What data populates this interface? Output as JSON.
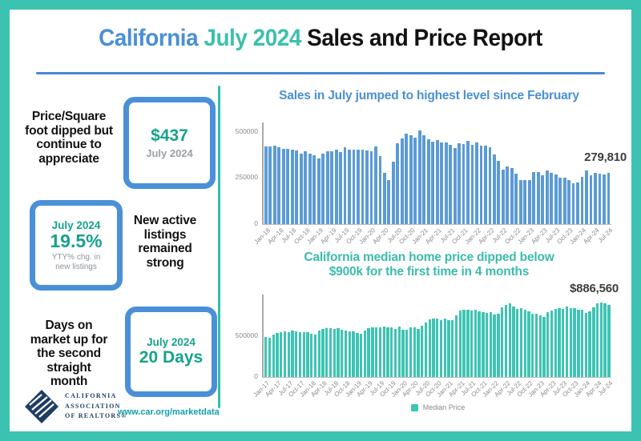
{
  "header": {
    "title_part1": "California",
    "title_part2": "July 2024",
    "title_part3": "Sales and Price Report"
  },
  "left_panel": {
    "stat1": {
      "description": "Price/Square foot dipped but continue to appreciate",
      "value": "$437",
      "period": "July 2024"
    },
    "stat2": {
      "period": "July 2024",
      "value": "19.5%",
      "caption": "YTY% chg. in new listings",
      "description": "New active listings remained strong"
    },
    "stat3": {
      "description": "Days on market up for the second straight month",
      "period": "July 2024",
      "value": "20 Days"
    }
  },
  "footer": {
    "logo_line1": "CALIFORNIA",
    "logo_line2": "ASSOCIATION",
    "logo_line3": "OF REALTORS®",
    "url": "www.car.org/marketdata"
  },
  "colors": {
    "frame_teal": "#3cc2b0",
    "divider_teal": "#2fbfae",
    "underline_blue": "#4a86d8",
    "title_blue": "#4a8fd6",
    "title_teal": "#3cc0ae",
    "text_dark": "#121212",
    "box_border": "#4a90d9",
    "stat_teal": "#16a28c",
    "box_gray": "#9aa0a5",
    "caption_gray": "#8d949b",
    "axis_gray": "#8a8a8a",
    "annotation_dark": "#3d3d3d",
    "logo_navy": "#1d3d63",
    "url_teal": "#12a0ab",
    "legend_gray": "#8a8a8a",
    "legend_swatch": "#3ec4b3"
  },
  "chart_data": [
    {
      "type": "bar",
      "title": "Sales in July jumped to highest level since February",
      "title_color": "#4a90d2",
      "bar_color": "#5b9bd5",
      "annotation": "279,810",
      "ylim": [
        0,
        530000
      ],
      "yticks": [
        0,
        250000,
        500000
      ],
      "tick_every": 3,
      "legend_position": "none",
      "grid": false,
      "categories": [
        "Jan-18",
        "Feb-18",
        "Mar-18",
        "Apr-18",
        "May-18",
        "Jun-18",
        "Jul-18",
        "Aug-18",
        "Sep-18",
        "Oct-18",
        "Nov-18",
        "Dec-18",
        "Jan-19",
        "Feb-19",
        "Mar-19",
        "Apr-19",
        "May-19",
        "Jun-19",
        "Jul-19",
        "Aug-19",
        "Sep-19",
        "Oct-19",
        "Nov-19",
        "Dec-19",
        "Jan-20",
        "Feb-20",
        "Mar-20",
        "Apr-20",
        "May-20",
        "Jun-20",
        "Jul-20",
        "Aug-20",
        "Sep-20",
        "Oct-20",
        "Nov-20",
        "Dec-20",
        "Jan-21",
        "Feb-21",
        "Mar-21",
        "Apr-21",
        "May-21",
        "Jun-21",
        "Jul-21",
        "Aug-21",
        "Sep-21",
        "Oct-21",
        "Nov-21",
        "Dec-21",
        "Jan-22",
        "Feb-22",
        "Mar-22",
        "Apr-22",
        "May-22",
        "Jun-22",
        "Jul-22",
        "Aug-22",
        "Sep-22",
        "Oct-22",
        "Nov-22",
        "Dec-22",
        "Jan-23",
        "Feb-23",
        "Mar-23",
        "Apr-23",
        "May-23",
        "Jun-23",
        "Jul-23",
        "Aug-23",
        "Sep-23",
        "Oct-23",
        "Nov-23",
        "Dec-23",
        "Jan-24",
        "Feb-24",
        "Mar-24",
        "Apr-24",
        "May-24",
        "Jun-24",
        "Jul-24"
      ],
      "values": [
        420000,
        423000,
        424000,
        416000,
        409000,
        410000,
        406000,
        399000,
        382000,
        397000,
        381000,
        372000,
        357000,
        383000,
        397000,
        396000,
        406000,
        389000,
        415000,
        406000,
        404000,
        404000,
        402000,
        398000,
        395000,
        421000,
        370000,
        277000,
        238000,
        339000,
        437000,
        465000,
        489000,
        484000,
        469000,
        509000,
        484000,
        462000,
        446000,
        458000,
        445000,
        444000,
        428000,
        414000,
        439000,
        434000,
        454000,
        430000,
        444000,
        425000,
        426000,
        419000,
        378000,
        344000,
        295000,
        313000,
        305000,
        274000,
        237000,
        241000,
        241000,
        284000,
        281000,
        267000,
        290000,
        277000,
        270000,
        254000,
        254000,
        241000,
        223000,
        224000,
        256000,
        290000,
        267000,
        276000,
        272000,
        270000,
        279810
      ]
    },
    {
      "type": "bar",
      "title": "California median home price dipped below $900k for the first time in 4 months",
      "title_lines": [
        "California median home price dipped below",
        "$900k for the first time in 4 months"
      ],
      "title_color": "#3bbcab",
      "bar_color": "#3ec4b3",
      "annotation": "$886,560",
      "legend": "Median Price",
      "legend_position": "bottom",
      "ylim": [
        0,
        960000
      ],
      "yticks": [
        0,
        500000
      ],
      "tick_every": 3,
      "grid": false,
      "categories": [
        "Jan-17",
        "Feb-17",
        "Mar-17",
        "Apr-17",
        "May-17",
        "Jun-17",
        "Jul-17",
        "Aug-17",
        "Sep-17",
        "Oct-17",
        "Nov-17",
        "Dec-17",
        "Jan-18",
        "Feb-18",
        "Mar-18",
        "Apr-18",
        "May-18",
        "Jun-18",
        "Jul-18",
        "Aug-18",
        "Sep-18",
        "Oct-18",
        "Nov-18",
        "Dec-18",
        "Jan-19",
        "Feb-19",
        "Mar-19",
        "Apr-19",
        "May-19",
        "Jun-19",
        "Jul-19",
        "Aug-19",
        "Sep-19",
        "Oct-19",
        "Nov-19",
        "Dec-19",
        "Jan-20",
        "Feb-20",
        "Mar-20",
        "Apr-20",
        "May-20",
        "Jun-20",
        "Jul-20",
        "Aug-20",
        "Sep-20",
        "Oct-20",
        "Nov-20",
        "Dec-20",
        "Jan-21",
        "Feb-21",
        "Mar-21",
        "Apr-21",
        "May-21",
        "Jun-21",
        "Jul-21",
        "Aug-21",
        "Sep-21",
        "Oct-21",
        "Nov-21",
        "Dec-21",
        "Jan-22",
        "Feb-22",
        "Mar-22",
        "Apr-22",
        "May-22",
        "Jun-22",
        "Jul-22",
        "Aug-22",
        "Sep-22",
        "Oct-22",
        "Nov-22",
        "Dec-22",
        "Jan-23",
        "Feb-23",
        "Mar-23",
        "Apr-23",
        "May-23",
        "Jun-23",
        "Jul-23",
        "Aug-23",
        "Sep-23",
        "Oct-23",
        "Nov-23",
        "Dec-23",
        "Jan-24",
        "Feb-24",
        "Mar-24",
        "Apr-24",
        "May-24",
        "Jun-24",
        "Jul-24"
      ],
      "values": [
        489000,
        479000,
        517000,
        537000,
        550000,
        555000,
        549000,
        565000,
        555000,
        546000,
        546000,
        549000,
        527000,
        522000,
        564000,
        584000,
        600000,
        602000,
        591000,
        596000,
        578000,
        572000,
        554000,
        557000,
        538000,
        534000,
        565000,
        602000,
        611000,
        611000,
        607000,
        617000,
        605000,
        605000,
        589000,
        615000,
        575000,
        579000,
        612000,
        606000,
        588000,
        626000,
        666000,
        707000,
        712000,
        711000,
        699000,
        717000,
        699000,
        699000,
        759000,
        814000,
        819000,
        819000,
        811000,
        827000,
        808000,
        798000,
        782000,
        796000,
        765000,
        771000,
        849000,
        884000,
        898000,
        864000,
        833000,
        839000,
        821000,
        801000,
        777000,
        774000,
        751000,
        735000,
        791000,
        815000,
        836000,
        838000,
        832000,
        859000,
        843000,
        840000,
        822000,
        819000,
        788000,
        806000,
        854000,
        904000,
        908000,
        900000,
        886560
      ]
    }
  ]
}
